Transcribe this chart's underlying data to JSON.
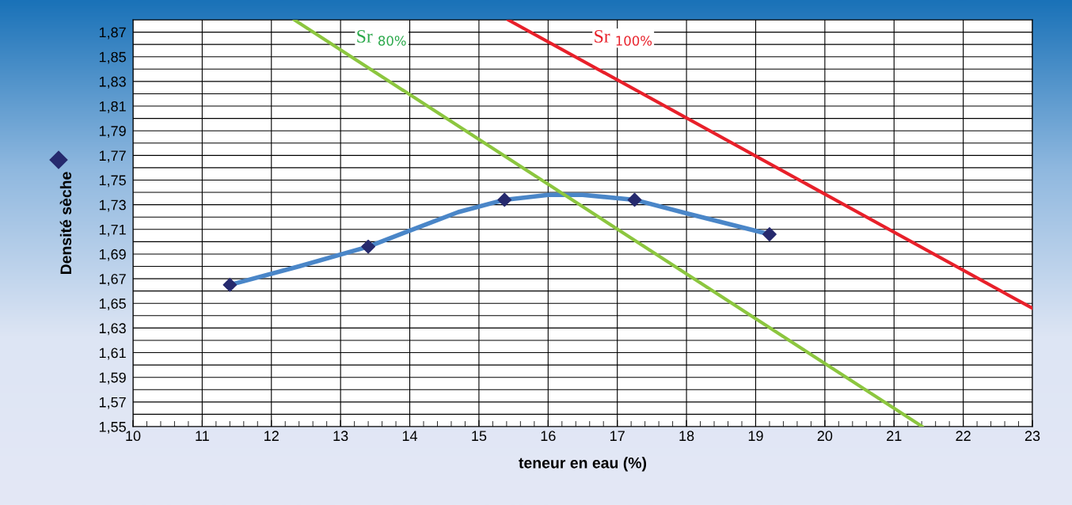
{
  "chart_data": {
    "type": "line",
    "xlabel": "teneur en eau (%)",
    "ylabel": "Densité sèche",
    "xlim": [
      10,
      23
    ],
    "xticks": [
      10,
      11,
      12,
      13,
      14,
      15,
      16,
      17,
      18,
      19,
      20,
      21,
      22,
      23
    ],
    "ylim": [
      1.55,
      1.88
    ],
    "yticks": [
      {
        "value": 1.55,
        "label": "1,55"
      },
      {
        "value": 1.56,
        "label": null
      },
      {
        "value": 1.57,
        "label": "1,57"
      },
      {
        "value": 1.58,
        "label": null
      },
      {
        "value": 1.59,
        "label": "1,59"
      },
      {
        "value": 1.6,
        "label": null
      },
      {
        "value": 1.61,
        "label": "1,61"
      },
      {
        "value": 1.62,
        "label": null
      },
      {
        "value": 1.63,
        "label": "1,63"
      },
      {
        "value": 1.64,
        "label": null
      },
      {
        "value": 1.65,
        "label": "1,65"
      },
      {
        "value": 1.66,
        "label": null
      },
      {
        "value": 1.67,
        "label": "1,67"
      },
      {
        "value": 1.68,
        "label": null
      },
      {
        "value": 1.69,
        "label": "1,69"
      },
      {
        "value": 1.7,
        "label": null
      },
      {
        "value": 1.71,
        "label": "1,71"
      },
      {
        "value": 1.72,
        "label": null
      },
      {
        "value": 1.73,
        "label": "1,73"
      },
      {
        "value": 1.74,
        "label": null
      },
      {
        "value": 1.75,
        "label": "1,75"
      },
      {
        "value": 1.76,
        "label": null
      },
      {
        "value": 1.77,
        "label": "1,77"
      },
      {
        "value": 1.78,
        "label": null
      },
      {
        "value": 1.79,
        "label": "1,79"
      },
      {
        "value": 1.8,
        "label": null
      },
      {
        "value": 1.81,
        "label": "1,81"
      },
      {
        "value": 1.82,
        "label": null
      },
      {
        "value": 1.83,
        "label": "1,83"
      },
      {
        "value": 1.84,
        "label": null
      },
      {
        "value": 1.85,
        "label": "1,85"
      },
      {
        "value": 1.86,
        "label": null
      },
      {
        "value": 1.87,
        "label": "1,87"
      },
      {
        "value": 1.88,
        "label": null
      }
    ],
    "grid": true,
    "series": [
      {
        "color": "#4a86c8",
        "marker": "none",
        "x": [
          11.4,
          12.4,
          13.4,
          14.0,
          14.7,
          15.37,
          16.0,
          16.5,
          17.25,
          18.0,
          19.2
        ],
        "values": [
          1.665,
          1.68,
          1.696,
          1.709,
          1.724,
          1.734,
          1.738,
          1.738,
          1.734,
          1.723,
          1.706
        ]
      },
      {
        "type": "scatter",
        "color": "#262a6e",
        "marker": "diamond",
        "x": [
          11.4,
          13.4,
          15.37,
          17.25,
          19.2
        ],
        "values": [
          1.665,
          1.696,
          1.734,
          1.734,
          1.706
        ]
      },
      {
        "color": "#8cc63f",
        "marker": "none",
        "x": [
          12.33,
          21.41
        ],
        "values": [
          1.88,
          1.55
        ]
      },
      {
        "color": "#e8202a",
        "marker": "none",
        "x": [
          15.42,
          23
        ],
        "values": [
          1.88,
          1.646
        ]
      }
    ],
    "annotations": [
      "Sr $_{80%}$",
      "Sr $_{100%}$"
    ]
  }
}
